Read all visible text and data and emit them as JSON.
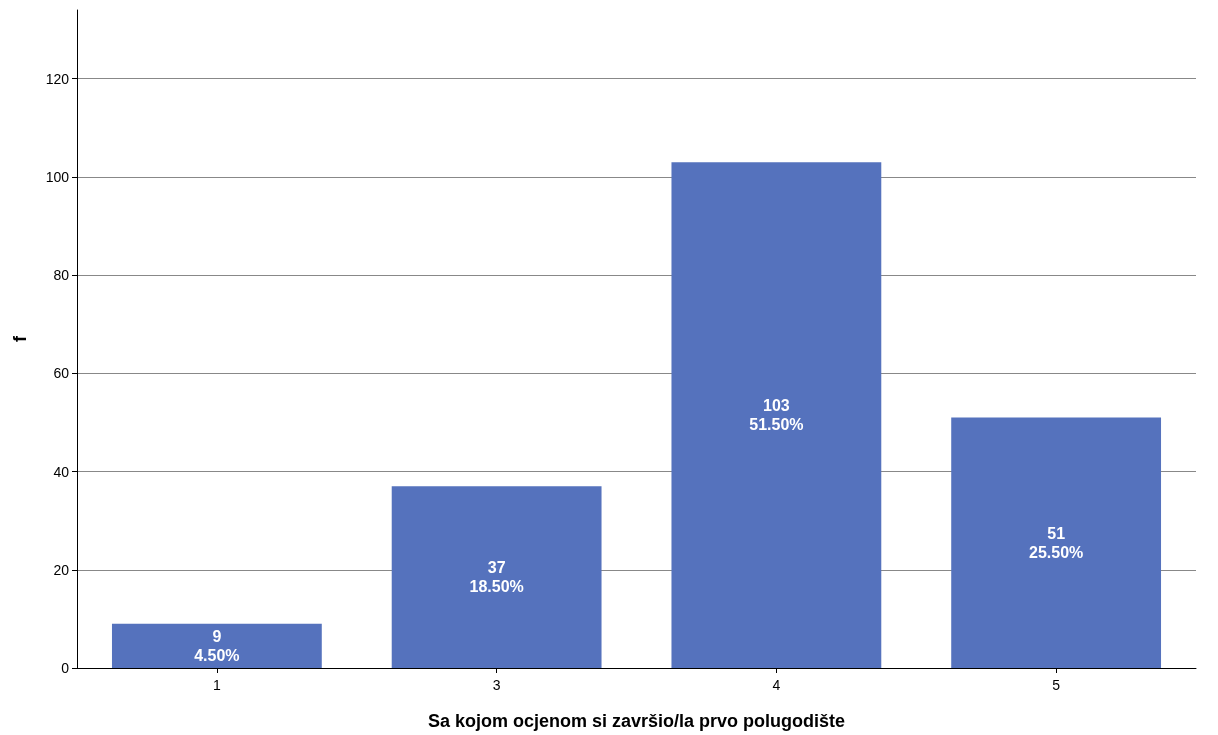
{
  "chart_data": {
    "type": "bar",
    "xlabel": "Sa kojom ocjenom si završio/la prvo polugodište",
    "ylabel": "f",
    "categories": [
      "1",
      "3",
      "4",
      "5"
    ],
    "values": [
      9,
      37,
      103,
      51
    ],
    "value_labels": [
      "9\n4.50%",
      "37\n18.50%",
      "103\n51.50%",
      "51\n25.50%"
    ],
    "color": "#5572bd",
    "ylim": [
      0,
      134
    ],
    "yticks": [
      0,
      20,
      40,
      60,
      80,
      100,
      120
    ],
    "grid": "y"
  }
}
